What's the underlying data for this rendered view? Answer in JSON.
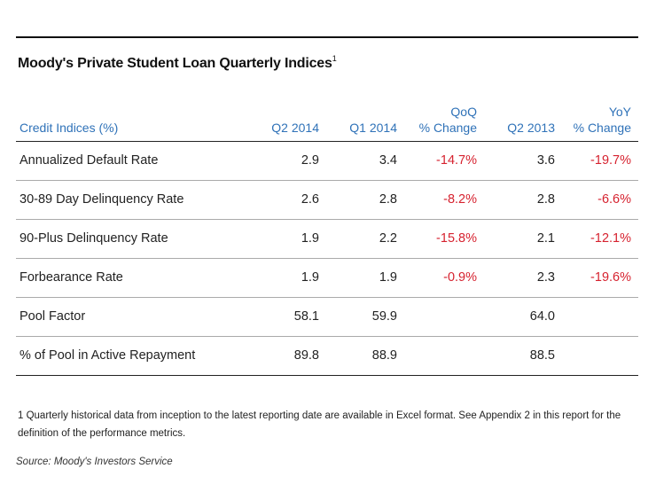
{
  "chart_data": {
    "type": "table",
    "title": "Moody's Private Student Loan Quarterly Indices",
    "title_footnote_mark": "1",
    "columns": [
      "Credit Indices (%)",
      "Q2 2014",
      "Q1 2014",
      "QoQ % Change",
      "Q2 2013",
      "YoY % Change"
    ],
    "header_lines": [
      [
        "Credit Indices (%)"
      ],
      [
        "Q2 2014"
      ],
      [
        "Q1 2014"
      ],
      [
        "QoQ",
        "% Change"
      ],
      [
        "Q2 2013"
      ],
      [
        "YoY",
        "% Change"
      ]
    ],
    "rows": [
      {
        "label": "Annualized Default Rate",
        "q2_2014": "2.9",
        "q1_2014": "3.4",
        "qoq": "-14.7%",
        "q2_2013": "3.6",
        "yoy": "-19.7%"
      },
      {
        "label": "30-89 Day Delinquency Rate",
        "q2_2014": "2.6",
        "q1_2014": "2.8",
        "qoq": "-8.2%",
        "q2_2013": "2.8",
        "yoy": "-6.6%"
      },
      {
        "label": "90-Plus Delinquency Rate",
        "q2_2014": "1.9",
        "q1_2014": "2.2",
        "qoq": "-15.8%",
        "q2_2013": "2.1",
        "yoy": "-12.1%"
      },
      {
        "label": "Forbearance Rate",
        "q2_2014": "1.9",
        "q1_2014": "1.9",
        "qoq": "-0.9%",
        "q2_2013": "2.3",
        "yoy": "-19.6%"
      },
      {
        "label": "Pool Factor",
        "q2_2014": "58.1",
        "q1_2014": "59.9",
        "qoq": "",
        "q2_2013": "64.0",
        "yoy": ""
      },
      {
        "label": "% of Pool in Active Repayment",
        "q2_2014": "89.8",
        "q1_2014": "88.9",
        "qoq": "",
        "q2_2013": "88.5",
        "yoy": ""
      }
    ]
  },
  "footnote": "1 Quarterly historical data from inception to the latest reporting date are available in Excel format. See Appendix 2 in this report for the definition of the performance metrics.",
  "source": "Source: Moody's Investors Service",
  "colors": {
    "header": "#2f72b8",
    "negative": "#d6222f",
    "text": "#222222"
  }
}
